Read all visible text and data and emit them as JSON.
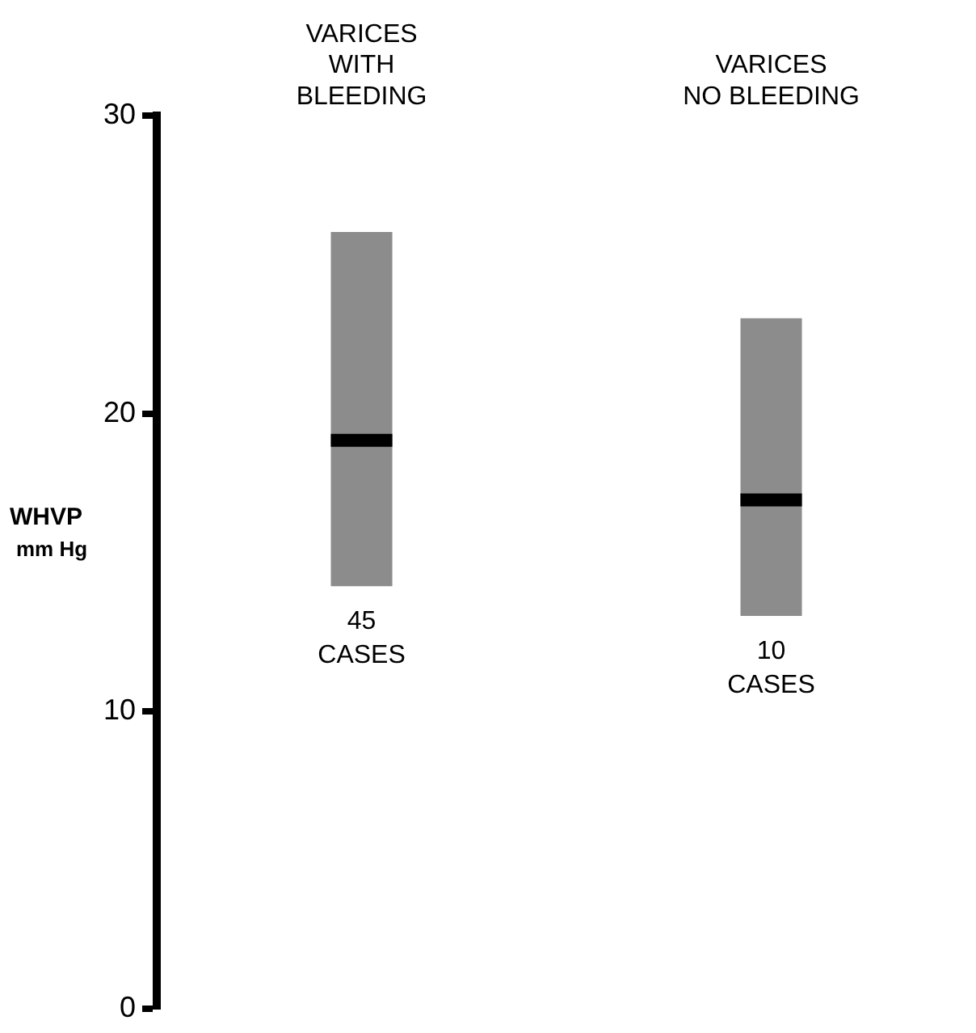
{
  "chart_data": {
    "type": "box",
    "categories": [
      "VARICES WITH BLEEDING",
      "VARICES NO BLEEDING"
    ],
    "ylabel": "WHVP mm Hg",
    "color": "#8c8c8c",
    "boxes": [
      {
        "low": 14.2,
        "q1": 14.2,
        "median": 19.1,
        "q3": 26.1,
        "high": 26.1
      },
      {
        "low": 13.2,
        "q1": 13.2,
        "median": 17.1,
        "q3": 23.2,
        "high": 23.2
      }
    ],
    "ylim": [
      0,
      30
    ],
    "yticks": [
      0,
      10,
      20,
      30
    ],
    "grid": false,
    "legend": false,
    "annotations": [
      {
        "text": "45 CASES",
        "x": "VARICES WITH BLEEDING",
        "y": 14.2
      },
      {
        "text": "10 CASES",
        "x": "VARICES NO BLEEDING",
        "y": 13.2
      }
    ]
  }
}
